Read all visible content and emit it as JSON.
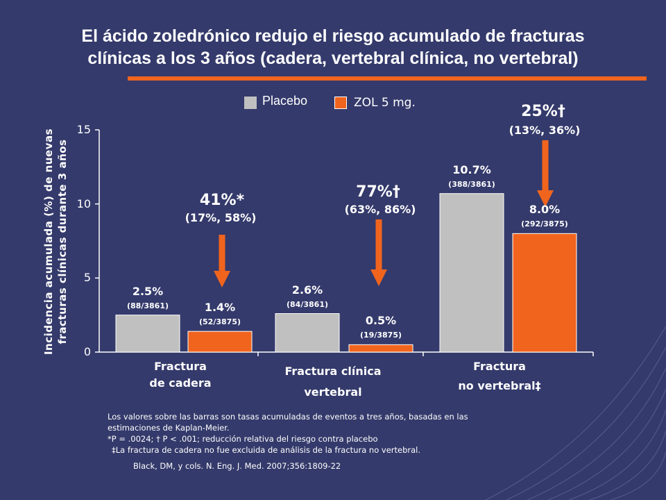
{
  "title": "El ácido zoledrónico redujo el riesgo acumulado de fracturas\nclínicas a los 3 años (cadera, vertebral clínica, no vertebral)",
  "colors": {
    "background": "#343a6b",
    "placebo": "#c0c0c0",
    "zol": "#f0641e",
    "accent": "#f0641e"
  },
  "chart_data": {
    "type": "bar",
    "categories": [
      "Fractura\nde cadera",
      "Fractura clínica\nvertebral",
      "Fractura\nno vertebral‡"
    ],
    "series": [
      {
        "name": "Placebo",
        "values": [
          2.5,
          2.6,
          10.7
        ],
        "value_labels": [
          "2.5%",
          "2.6%",
          "10.7%"
        ],
        "counts": [
          "(88/3861)",
          "(84/3861)",
          "(388/3861)"
        ]
      },
      {
        "name": "ZOL 5 mg.",
        "values": [
          1.4,
          0.5,
          8.0
        ],
        "value_labels": [
          "1.4%",
          "0.5%",
          "8.0%"
        ],
        "counts": [
          "(52/3875)",
          "(19/3875)",
          "(292/3875)"
        ]
      }
    ],
    "ylabel_lines": [
      "Incidencia acumulada (%) de nuevas",
      "fracturas clínicas durante 3 años"
    ],
    "yticks": [
      0,
      5,
      10,
      15
    ],
    "ylim": [
      0,
      15
    ],
    "legend_position": "top",
    "risk_reductions": [
      {
        "pct": "41%*",
        "ci": "(17%, 58%)"
      },
      {
        "pct": "77%†",
        "ci": "(63%, 86%)"
      },
      {
        "pct": "25%†",
        "ci": "(13%, 36%)"
      }
    ]
  },
  "footnotes": [
    "Los valores sobre las barras son tasas acumuladas de eventos a tres años, basadas en las",
    "estimaciones de Kaplan-Meier.",
    "*P = .0024; † P < .001; reducción relativa del riesgo contra placebo",
    "‡La fractura de cadera no fue excluida de análisis de la fractura no vertebral."
  ],
  "source": "Black, DM, y cols.  N. Eng. J. Med. 2007;356:1809-22"
}
